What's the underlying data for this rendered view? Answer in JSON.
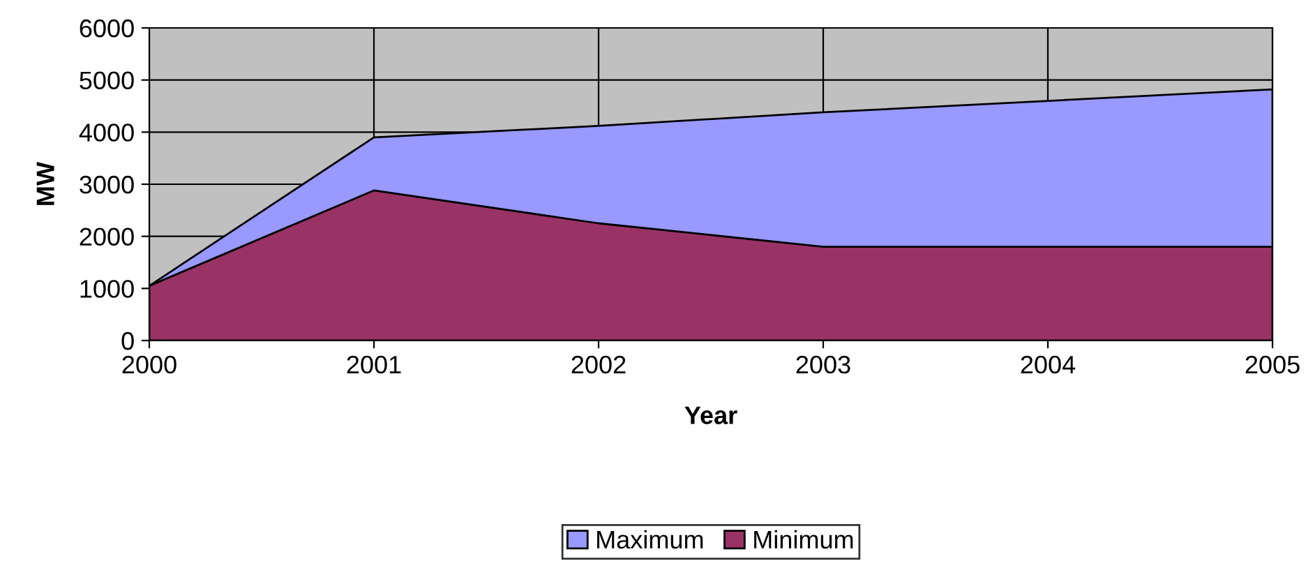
{
  "chart_data": {
    "type": "area",
    "xlabel": "Year",
    "ylabel": "MW",
    "categories": [
      "2000",
      "2001",
      "2002",
      "2003",
      "2004",
      "2005"
    ],
    "series": [
      {
        "name": "Maximum",
        "color": "#9999ff",
        "values": [
          1050,
          3900,
          4120,
          4380,
          4600,
          4820
        ]
      },
      {
        "name": "Minimum",
        "color": "#993366",
        "values": [
          1050,
          2880,
          2250,
          1800,
          1800,
          1800
        ]
      }
    ],
    "ylim": [
      0,
      6000
    ],
    "yticks": [
      0,
      1000,
      2000,
      3000,
      4000,
      5000,
      6000
    ],
    "grid": true,
    "legend": "bottom"
  }
}
